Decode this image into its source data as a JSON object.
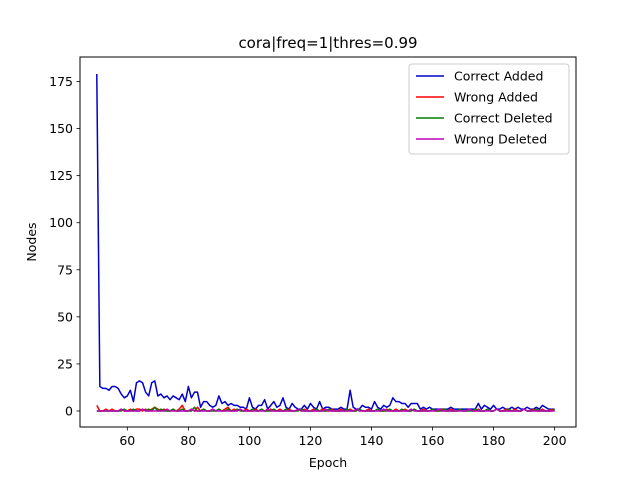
{
  "chart_data": {
    "type": "line",
    "title": "cora|freq=1|thres=0.99",
    "xlabel": "Epoch",
    "ylabel": "Nodes",
    "xlim": [
      44.5,
      207
    ],
    "ylim": [
      -8.5,
      188
    ],
    "xticks": [
      60,
      80,
      100,
      120,
      140,
      160,
      180,
      200
    ],
    "yticks": [
      0,
      25,
      50,
      75,
      100,
      125,
      150,
      175
    ],
    "grid": false,
    "legend_position": "top-right",
    "x": [
      50,
      51,
      52,
      53,
      54,
      55,
      56,
      57,
      58,
      59,
      60,
      61,
      62,
      63,
      64,
      65,
      66,
      67,
      68,
      69,
      70,
      71,
      72,
      73,
      74,
      75,
      76,
      77,
      78,
      79,
      80,
      81,
      82,
      83,
      84,
      85,
      86,
      87,
      88,
      89,
      90,
      91,
      92,
      93,
      94,
      95,
      96,
      97,
      98,
      99,
      100,
      101,
      102,
      103,
      104,
      105,
      106,
      107,
      108,
      109,
      110,
      111,
      112,
      113,
      114,
      115,
      116,
      117,
      118,
      119,
      120,
      121,
      122,
      123,
      124,
      125,
      126,
      127,
      128,
      129,
      130,
      131,
      132,
      133,
      134,
      135,
      136,
      137,
      138,
      139,
      140,
      141,
      142,
      143,
      144,
      145,
      146,
      147,
      148,
      149,
      150,
      151,
      152,
      153,
      154,
      155,
      156,
      157,
      158,
      159,
      160,
      161,
      162,
      163,
      164,
      165,
      166,
      167,
      168,
      169,
      170,
      171,
      172,
      173,
      174,
      175,
      176,
      177,
      178,
      179,
      180,
      181,
      182,
      183,
      184,
      185,
      186,
      187,
      188,
      189,
      190,
      191,
      192,
      193,
      194,
      195,
      196,
      197,
      198,
      199,
      200
    ],
    "series": [
      {
        "name": "Correct Added",
        "color": "#0000cc",
        "values": [
          179,
          13,
          12,
          12,
          11,
          13,
          13,
          12,
          9,
          7,
          8,
          11,
          5,
          15,
          16,
          15,
          10,
          8,
          15,
          16,
          8,
          9,
          7,
          8,
          6,
          8,
          7,
          6,
          9,
          5,
          13,
          7,
          10,
          10,
          2,
          5,
          5,
          3,
          2,
          3,
          8,
          4,
          5,
          3,
          4,
          3,
          3,
          2,
          2,
          1,
          7,
          2,
          1,
          3,
          3,
          6,
          1,
          3,
          5,
          2,
          3,
          7,
          2,
          1,
          4,
          2,
          1,
          1,
          3,
          1,
          4,
          2,
          1,
          5,
          1,
          2,
          2,
          1,
          1,
          1,
          2,
          1,
          1,
          11,
          2,
          1,
          1,
          3,
          2,
          2,
          1,
          5,
          2,
          1,
          3,
          2,
          3,
          7,
          5,
          5,
          4,
          4,
          2,
          4,
          4,
          4,
          1,
          2,
          1,
          2,
          1,
          1,
          1,
          1,
          1,
          1,
          2,
          1,
          1,
          1,
          1,
          1,
          1,
          1,
          1,
          4,
          1,
          3,
          2,
          1,
          3,
          1,
          1,
          2,
          1,
          1,
          2,
          1,
          2,
          1,
          1,
          2,
          1,
          1,
          2,
          1,
          3,
          2,
          1,
          1,
          1
        ]
      },
      {
        "name": "Wrong Added",
        "color": "#ff0000",
        "values": [
          3,
          0,
          0,
          1,
          0,
          1,
          0,
          0,
          1,
          0,
          0,
          1,
          0,
          1,
          1,
          0,
          1,
          0,
          1,
          2,
          1,
          0,
          1,
          0,
          0,
          1,
          0,
          1,
          3,
          0,
          0,
          1,
          0,
          2,
          0,
          1,
          0,
          0,
          1,
          0,
          1,
          0,
          1,
          2,
          0,
          1,
          0,
          1,
          0,
          1,
          0,
          0,
          1,
          0,
          1,
          0,
          0,
          1,
          0,
          0,
          1,
          0,
          0,
          1,
          0,
          0,
          1,
          0,
          1,
          0,
          0,
          1,
          0,
          0,
          1,
          0,
          0,
          1,
          0,
          0,
          1,
          0,
          0,
          1,
          0,
          0,
          1,
          0,
          0,
          1,
          0,
          0,
          1,
          0,
          0,
          1,
          0,
          0,
          1,
          0,
          0,
          1,
          0,
          0,
          1,
          0,
          0,
          1,
          0,
          0,
          1,
          0,
          0,
          1,
          0,
          0,
          1,
          0,
          0,
          1,
          0,
          0,
          1,
          0,
          0,
          1,
          0,
          0,
          1,
          0,
          0,
          1,
          0,
          0,
          1,
          0,
          0,
          1,
          0,
          0,
          1,
          0,
          0,
          1,
          0,
          0,
          1,
          0,
          0,
          1,
          0
        ]
      },
      {
        "name": "Correct Deleted",
        "color": "#008000",
        "values": [
          0,
          0,
          0,
          0,
          0,
          0,
          0,
          0,
          0,
          1,
          0,
          0,
          1,
          0,
          0,
          1,
          0,
          1,
          0,
          2,
          0,
          1,
          0,
          0,
          0,
          1,
          0,
          0,
          1,
          0,
          0,
          0,
          2,
          0,
          0,
          1,
          0,
          0,
          0,
          0,
          1,
          0,
          0,
          1,
          0,
          0,
          1,
          0,
          0,
          0,
          0,
          1,
          0,
          0,
          1,
          0,
          0,
          0,
          1,
          0,
          0,
          0,
          1,
          0,
          0,
          0,
          0,
          1,
          0,
          0,
          0,
          0,
          1,
          0,
          0,
          0,
          1,
          0,
          0,
          0,
          0,
          0,
          1,
          0,
          0,
          0,
          1,
          0,
          0,
          0,
          0,
          0,
          1,
          0,
          0,
          0,
          1,
          0,
          0,
          0,
          1,
          0,
          0,
          0,
          1,
          0,
          0,
          0,
          0,
          0,
          1,
          0,
          0,
          0,
          1,
          0,
          0,
          0,
          0,
          1,
          0,
          0,
          0,
          0,
          1,
          0,
          0,
          0,
          1,
          0,
          0,
          1,
          0,
          0,
          0,
          1,
          0,
          0,
          0,
          0,
          1,
          0,
          0,
          0,
          1,
          0,
          0,
          0,
          0,
          0,
          1
        ]
      },
      {
        "name": "Wrong Deleted",
        "color": "#bf00bf",
        "values": [
          0,
          0,
          0,
          0,
          0,
          0,
          0,
          0,
          1,
          0,
          0,
          0,
          0,
          0,
          0,
          1,
          0,
          0,
          0,
          0,
          0,
          0,
          0,
          1,
          0,
          0,
          0,
          0,
          0,
          0,
          0,
          1,
          0,
          0,
          0,
          0,
          0,
          0,
          1,
          0,
          0,
          0,
          0,
          0,
          0,
          0,
          0,
          1,
          0,
          0,
          0,
          0,
          0,
          0,
          0,
          0,
          1,
          0,
          0,
          0,
          0,
          0,
          0,
          0,
          0,
          0,
          1,
          0,
          0,
          0,
          0,
          0,
          0,
          0,
          0,
          1,
          0,
          0,
          0,
          0,
          0,
          0,
          0,
          0,
          0,
          1,
          0,
          0,
          0,
          0,
          0,
          0,
          0,
          0,
          1,
          0,
          0,
          0,
          0,
          0,
          0,
          0,
          0,
          1,
          0,
          0,
          0,
          0,
          0,
          0,
          0,
          0,
          1,
          0,
          0,
          0,
          0,
          0,
          0,
          0,
          0,
          0,
          1,
          0,
          0,
          0,
          0,
          0,
          0,
          0,
          0,
          1,
          0,
          0,
          0,
          0,
          0,
          0,
          0,
          0,
          1,
          0,
          0,
          0,
          0,
          0,
          0,
          0,
          0,
          0,
          0
        ]
      }
    ]
  }
}
